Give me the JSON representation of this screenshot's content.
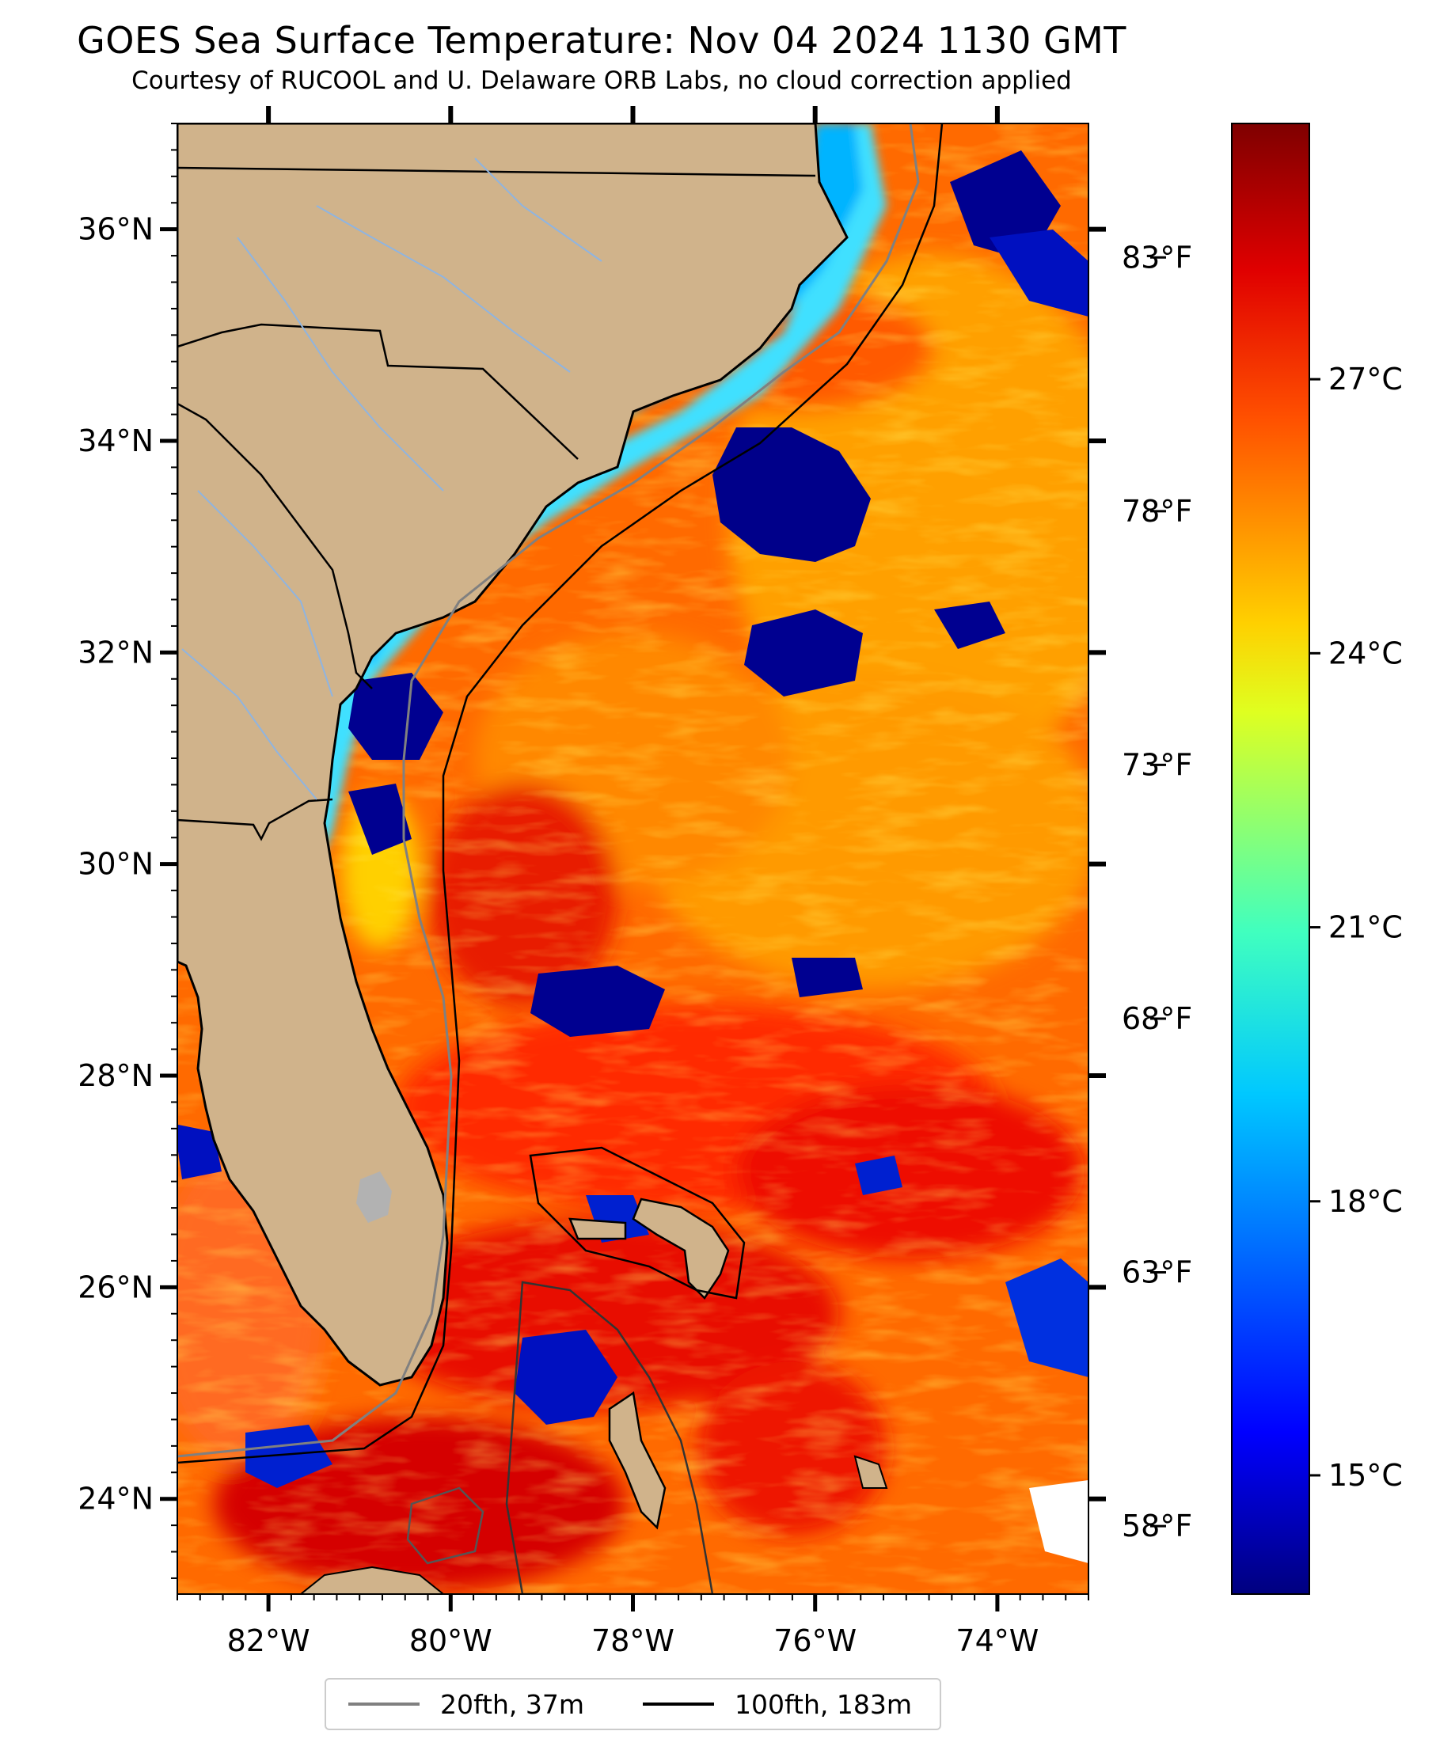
{
  "title": "GOES Sea Surface Temperature: Nov 04 2024 1130 GMT",
  "subtitle": "Courtesy of RUCOOL and U. Delaware ORB Labs, no cloud correction applied",
  "map": {
    "lon_range": [
      -83,
      -73
    ],
    "lat_range": [
      23.1,
      37.0
    ],
    "lat_ticks": [
      {
        "value": 36,
        "label": "36°N"
      },
      {
        "value": 34,
        "label": "34°N"
      },
      {
        "value": 32,
        "label": "32°N"
      },
      {
        "value": 30,
        "label": "30°N"
      },
      {
        "value": 28,
        "label": "28°N"
      },
      {
        "value": 26,
        "label": "26°N"
      },
      {
        "value": 24,
        "label": "24°N"
      }
    ],
    "lon_ticks": [
      {
        "value": -82,
        "label": "82°W"
      },
      {
        "value": -80,
        "label": "80°W"
      },
      {
        "value": -78,
        "label": "78°W"
      },
      {
        "value": -76,
        "label": "76°W"
      },
      {
        "value": -74,
        "label": "74°W"
      }
    ],
    "colors": {
      "land": "#d0b38b",
      "lake": "#b2b2b2",
      "rivers": "#8fb4e0",
      "isobath_20fth": "#808080",
      "isobath_100fth": "#000000"
    }
  },
  "fahrenheit_ticks": [
    {
      "value": 83,
      "label": "83°F"
    },
    {
      "value": 78,
      "label": "78°F"
    },
    {
      "value": 73,
      "label": "73°F"
    },
    {
      "value": 68,
      "label": "68°F"
    },
    {
      "value": 63,
      "label": "63°F"
    },
    {
      "value": 58,
      "label": "58°F"
    }
  ],
  "colorbar": {
    "min_c": 13.7,
    "max_c": 29.8,
    "colormap": "jet",
    "stops": [
      "#00007f",
      "#0000ff",
      "#007fff",
      "#00ffff",
      "#7fff7f",
      "#ffff00",
      "#ff7f00",
      "#ff0000",
      "#7f0000"
    ],
    "ticks": [
      {
        "value": 27,
        "label": "27°C"
      },
      {
        "value": 24,
        "label": "24°C"
      },
      {
        "value": 21,
        "label": "21°C"
      },
      {
        "value": 18,
        "label": "18°C"
      },
      {
        "value": 15,
        "label": "15°C"
      }
    ]
  },
  "legend": {
    "items": [
      {
        "label": "20fth, 37m",
        "color": "#808080"
      },
      {
        "label": "100fth, 183m",
        "color": "#000000"
      }
    ]
  }
}
